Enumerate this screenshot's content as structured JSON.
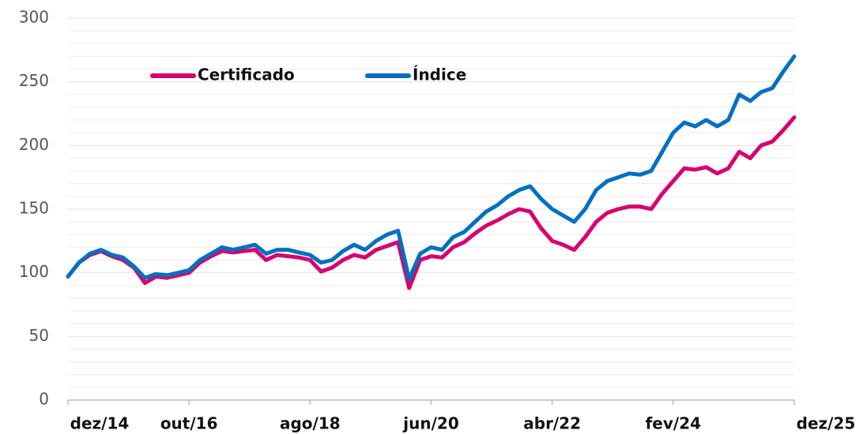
{
  "chart_data": {
    "type": "line",
    "categories": [
      "dez/14",
      null,
      null,
      null,
      null,
      null,
      null,
      null,
      null,
      null,
      null,
      "out/16",
      null,
      null,
      null,
      null,
      null,
      null,
      null,
      null,
      null,
      null,
      "ago/18",
      null,
      null,
      null,
      null,
      null,
      null,
      null,
      null,
      null,
      null,
      "jun/20",
      null,
      null,
      null,
      null,
      null,
      null,
      null,
      null,
      null,
      null,
      "abr/22",
      null,
      null,
      null,
      null,
      null,
      null,
      null,
      null,
      null,
      null,
      "fev/24",
      null,
      null,
      null,
      null,
      null,
      null,
      null,
      null,
      null,
      null,
      "dez/25"
    ],
    "series": [
      {
        "name": "Certificado",
        "color": "#d6006f",
        "values": [
          97,
          108,
          114,
          117,
          113,
          110,
          104,
          92,
          97,
          96,
          98,
          100,
          108,
          113,
          117,
          116,
          117,
          118,
          110,
          114,
          113,
          112,
          110,
          101,
          104,
          110,
          114,
          112,
          118,
          121,
          124,
          88,
          110,
          113,
          112,
          120,
          124,
          131,
          137,
          141,
          146,
          150,
          148,
          135,
          125,
          122,
          118,
          128,
          140,
          147,
          150,
          152,
          152,
          150,
          162,
          172,
          182,
          181,
          183,
          178,
          182,
          195,
          190,
          200,
          203,
          212,
          222
        ]
      },
      {
        "name": "Índice",
        "color": "#0070c0",
        "values": [
          97,
          108,
          115,
          118,
          114,
          112,
          105,
          96,
          99,
          98,
          100,
          102,
          110,
          115,
          120,
          118,
          120,
          122,
          115,
          118,
          118,
          116,
          114,
          108,
          110,
          117,
          122,
          118,
          125,
          130,
          133,
          95,
          115,
          120,
          118,
          128,
          132,
          140,
          148,
          153,
          160,
          165,
          168,
          158,
          150,
          145,
          140,
          150,
          165,
          172,
          175,
          178,
          177,
          180,
          195,
          210,
          218,
          215,
          220,
          215,
          220,
          240,
          235,
          242,
          245,
          258,
          270
        ]
      }
    ],
    "ylim": [
      0,
      300
    ],
    "yticks": [
      0,
      50,
      100,
      150,
      200,
      250,
      300
    ],
    "yminorticks": [
      10,
      20,
      30,
      40,
      60,
      70,
      80,
      90,
      110,
      120,
      130,
      140,
      160,
      170,
      180,
      190,
      210,
      220,
      230,
      240,
      260,
      270,
      280,
      290
    ],
    "grid": true,
    "legend": "top-left"
  }
}
